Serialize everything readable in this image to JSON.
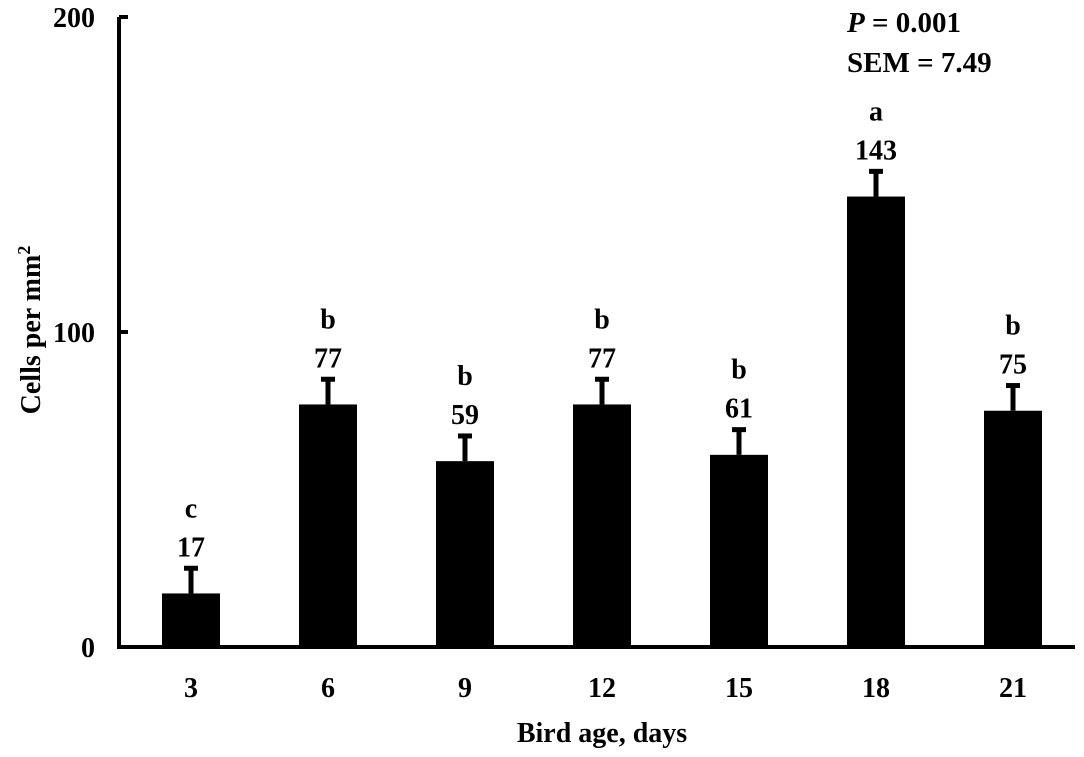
{
  "chart_data": {
    "type": "bar",
    "categories": [
      "3",
      "6",
      "9",
      "12",
      "15",
      "18",
      "21"
    ],
    "values": [
      17,
      77,
      59,
      77,
      61,
      143,
      75
    ],
    "error": [
      8,
      8,
      8,
      8,
      8,
      8,
      8
    ],
    "letters": [
      "c",
      "b",
      "b",
      "b",
      "b",
      "a",
      "b"
    ],
    "xlabel": "Bird age, days",
    "ylabel": "Cells per mm",
    "ylabel_superscript": "2",
    "ylim": [
      0,
      200
    ],
    "yticks": [
      0,
      100,
      200
    ],
    "bar_color": "#000000",
    "annotation": {
      "p_symbol": "P",
      "p_value": " = 0.001",
      "sem": "SEM = 7.49"
    }
  }
}
